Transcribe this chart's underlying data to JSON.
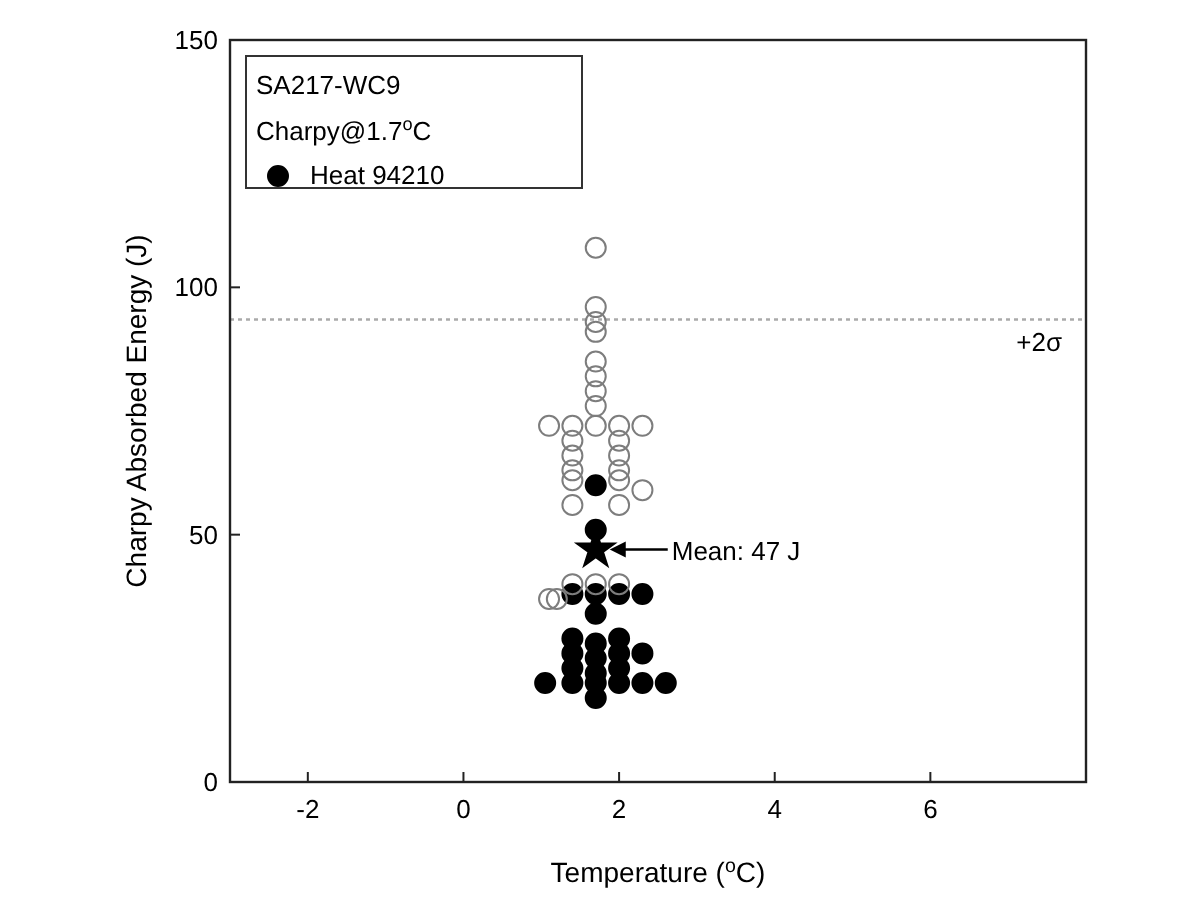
{
  "chart_data": {
    "type": "scatter",
    "xlabel": "Temperature ($^{o}$C)",
    "ylabel": "Charpy Absorbed Energy (J)",
    "xlim": [
      -3,
      8
    ],
    "xticks": [
      -2,
      0,
      2,
      4,
      6
    ],
    "ylim": [
      0,
      150
    ],
    "yticks": [
      0,
      50,
      100,
      150
    ],
    "legend": "top left",
    "legend_title": "SA217-WC9",
    "grid": false,
    "series": [
      {
        "name": "Heat 94210",
        "color": "#000000",
        "marker": "circle",
        "x": [
          1.4,
          1.7,
          2.0,
          2.3,
          1.7,
          1.4,
          1.4,
          1.4,
          1.7,
          1.7,
          1.7,
          2.0,
          2.0,
          2.0,
          2.3,
          1.05,
          1.4,
          1.7,
          2.0,
          2.3,
          2.6,
          1.7,
          1.7,
          1.7
        ],
        "values": [
          38,
          38,
          38,
          38,
          34,
          29,
          26,
          23,
          28,
          25,
          22,
          29,
          26,
          23,
          26,
          20,
          20,
          20,
          20,
          20,
          20,
          17,
          60,
          51
        ]
      },
      {
        "color": "#7d7d7d",
        "marker": "circle",
        "x": [
          1.7,
          1.7,
          1.7,
          1.7,
          1.7,
          1.7,
          1.7,
          1.7,
          1.1,
          1.4,
          1.7,
          2.0,
          2.3,
          1.4,
          2.0,
          1.4,
          2.0,
          1.4,
          2.0,
          1.4,
          2.0,
          2.3,
          1.4,
          2.0,
          1.1,
          1.2,
          1.4,
          1.7,
          2.0
        ],
        "values": [
          108,
          96,
          93,
          91,
          85,
          82,
          79,
          76,
          72,
          72,
          72,
          72,
          72,
          69,
          69,
          66,
          66,
          63,
          63,
          61,
          61,
          59,
          56,
          56,
          37,
          37,
          40,
          40,
          40
        ]
      },
      {
        "color": "#000000",
        "marker": "star",
        "x": [
          1.7
        ],
        "values": [
          47
        ]
      }
    ],
    "ref_lines": [
      {
        "axis": "y",
        "value": 93.5,
        "label": "+2σ",
        "color": "#aaaaaa",
        "line_style": "dotted"
      }
    ],
    "annotations": [
      "Charpy@1.7$^{o}$C",
      {
        "text": "Mean: 47 J",
        "x": 1.7,
        "y": 47
      }
    ]
  }
}
